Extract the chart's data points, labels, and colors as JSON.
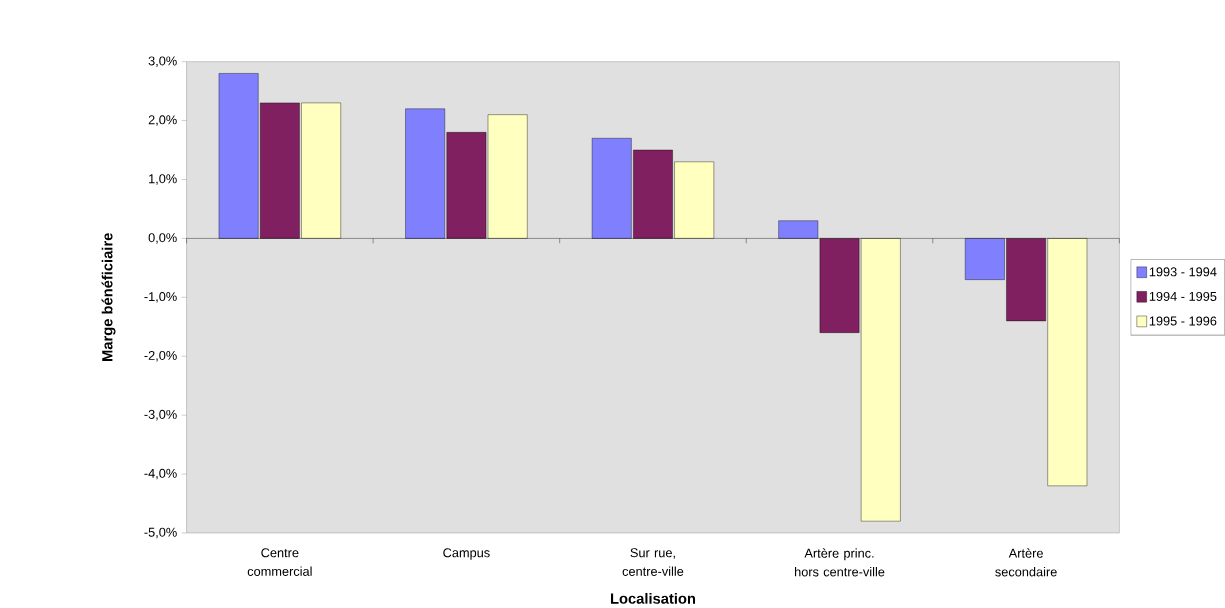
{
  "chart_data": {
    "type": "bar",
    "xlabel": "Localisation",
    "ylabel": "Marge bénéficiaire",
    "categories": [
      "Centre commercial",
      "Campus",
      "Sur rue, centre-ville",
      "Artère princ. hors centre-ville",
      "Artère secondaire"
    ],
    "series": [
      {
        "name": "1993 - 1994",
        "color": "#8080ff",
        "values": [
          2.8,
          2.2,
          1.7,
          0.3,
          -0.7
        ]
      },
      {
        "name": "1994 - 1995",
        "color": "#802060",
        "values": [
          2.3,
          1.8,
          1.5,
          -1.6,
          -1.4
        ]
      },
      {
        "name": "1995 - 1996",
        "color": "#ffffc0",
        "values": [
          2.3,
          2.1,
          1.3,
          -4.8,
          -4.2
        ]
      }
    ],
    "ylim": [
      -5,
      3
    ],
    "yticks": [
      {
        "value": -5,
        "label": "-5,0%"
      },
      {
        "value": -4,
        "label": "-4,0%"
      },
      {
        "value": -3,
        "label": "-3,0%"
      },
      {
        "value": -2,
        "label": "-2,0%"
      },
      {
        "value": -1,
        "label": "-1,0%"
      },
      {
        "value": 0,
        "label": "0,0%"
      },
      {
        "value": 1,
        "label": "1,0%"
      },
      {
        "value": 2,
        "label": "2,0%"
      },
      {
        "value": 3,
        "label": "3,0%"
      }
    ],
    "legend": "right"
  }
}
